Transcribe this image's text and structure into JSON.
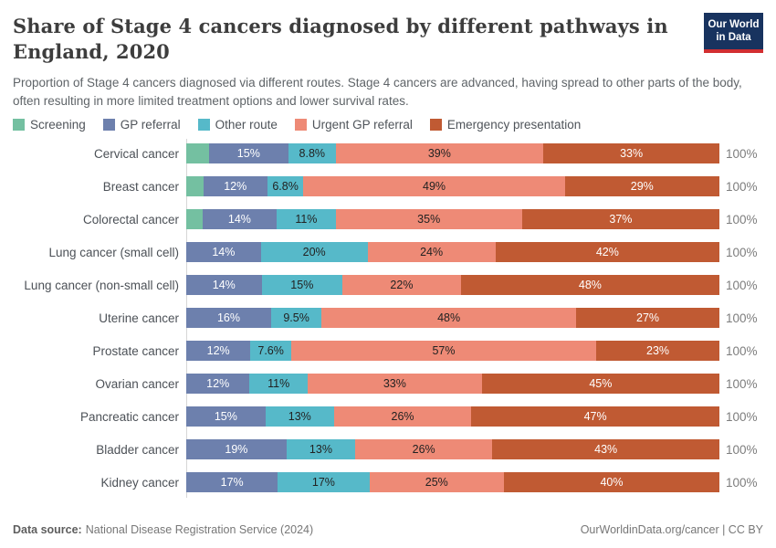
{
  "header": {
    "title": "Share of Stage 4 cancers diagnosed by different pathways in England, 2020",
    "subtitle": "Proportion of Stage 4 cancers diagnosed via different routes. Stage 4 cancers are advanced, having spread to other parts of the body, often resulting in more limited treatment options and lower survival rates.",
    "logo_line1": "Our World",
    "logo_line2": "in Data",
    "logo_bg": "#18335f",
    "logo_underline": "#d22e31"
  },
  "legend": [
    {
      "label": "Screening",
      "color": "#74c0a1"
    },
    {
      "label": "GP referral",
      "color": "#6d80ad"
    },
    {
      "label": "Other route",
      "color": "#56b9c9"
    },
    {
      "label": "Urgent GP referral",
      "color": "#ee8a76"
    },
    {
      "label": "Emergency presentation",
      "color": "#c05a33"
    }
  ],
  "chart_data": {
    "type": "bar",
    "orientation": "horizontal-stacked",
    "title": "Share of Stage 4 cancers diagnosed by different pathways in England, 2020",
    "x_range_percent": [
      0,
      100
    ],
    "grid": false,
    "legend_position": "top",
    "series_names": [
      "Screening",
      "GP referral",
      "Other route",
      "Urgent GP referral",
      "Emergency presentation"
    ],
    "label_colors": [
      "#ffffff",
      "#ffffff",
      "#222222",
      "#222222",
      "#ffffff"
    ],
    "categories": [
      "Cervical cancer",
      "Breast cancer",
      "Colorectal cancer",
      "Lung cancer (small cell)",
      "Lung cancer (non-small cell)",
      "Uterine cancer",
      "Prostate cancer",
      "Ovarian cancer",
      "Pancreatic cancer",
      "Bladder cancer",
      "Kidney cancer"
    ],
    "rows": [
      {
        "category": "Cervical cancer",
        "values": [
          4.2,
          15,
          8.8,
          39,
          33
        ],
        "labels": [
          "",
          "15%",
          "8.8%",
          "39%",
          "33%"
        ],
        "total_label": "100%"
      },
      {
        "category": "Breast cancer",
        "values": [
          3.2,
          12,
          6.8,
          49,
          29
        ],
        "labels": [
          "",
          "12%",
          "6.8%",
          "49%",
          "29%"
        ],
        "total_label": "100%"
      },
      {
        "category": "Colorectal cancer",
        "values": [
          3,
          14,
          11,
          35,
          37
        ],
        "labels": [
          "",
          "14%",
          "11%",
          "35%",
          "37%"
        ],
        "total_label": "100%"
      },
      {
        "category": "Lung cancer (small cell)",
        "values": [
          0,
          14,
          20,
          24,
          42
        ],
        "labels": [
          "",
          "14%",
          "20%",
          "24%",
          "42%"
        ],
        "total_label": "100%"
      },
      {
        "category": "Lung cancer (non-small cell)",
        "values": [
          0,
          14,
          15,
          22,
          48
        ],
        "labels": [
          "",
          "14%",
          "15%",
          "22%",
          "48%"
        ],
        "total_label": "100%"
      },
      {
        "category": "Uterine cancer",
        "values": [
          0,
          16,
          9.5,
          48,
          27
        ],
        "labels": [
          "",
          "16%",
          "9.5%",
          "48%",
          "27%"
        ],
        "total_label": "100%"
      },
      {
        "category": "Prostate cancer",
        "values": [
          0,
          12,
          7.6,
          57,
          23
        ],
        "labels": [
          "",
          "12%",
          "7.6%",
          "57%",
          "23%"
        ],
        "total_label": "100%"
      },
      {
        "category": "Ovarian cancer",
        "values": [
          0,
          12,
          11,
          33,
          45
        ],
        "labels": [
          "",
          "12%",
          "11%",
          "33%",
          "45%"
        ],
        "total_label": "100%"
      },
      {
        "category": "Pancreatic cancer",
        "values": [
          0,
          15,
          13,
          26,
          47
        ],
        "labels": [
          "",
          "15%",
          "13%",
          "26%",
          "47%"
        ],
        "total_label": "100%"
      },
      {
        "category": "Bladder cancer",
        "values": [
          0,
          19,
          13,
          26,
          43
        ],
        "labels": [
          "",
          "19%",
          "13%",
          "26%",
          "43%"
        ],
        "total_label": "100%"
      },
      {
        "category": "Kidney cancer",
        "values": [
          0,
          17,
          17,
          25,
          40
        ],
        "labels": [
          "",
          "17%",
          "17%",
          "25%",
          "40%"
        ],
        "total_label": "100%"
      }
    ]
  },
  "footer": {
    "source_label": "Data source:",
    "source_value": "National Disease Registration Service (2024)",
    "right_text": "OurWorldinData.org/cancer | CC BY"
  }
}
